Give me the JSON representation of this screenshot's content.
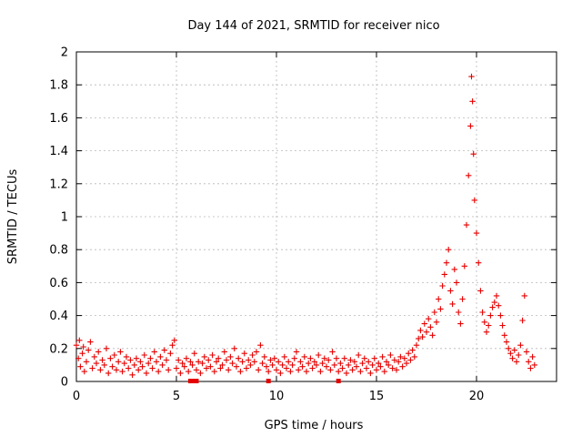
{
  "chart_data": {
    "type": "scatter",
    "title": "Day 144 of 2021, SRMTID for receiver nico",
    "xlabel": "GPS time / hours",
    "ylabel": "SRMTID / TECUs",
    "xlim": [
      0,
      24
    ],
    "ylim": [
      0,
      2
    ],
    "x_ticks": [
      0,
      5,
      10,
      15,
      20
    ],
    "x_tick_labels": [
      "0",
      "5",
      "10",
      "15",
      "20"
    ],
    "y_ticks": [
      0,
      0.2,
      0.4,
      0.6,
      0.8,
      1,
      1.2,
      1.4,
      1.6,
      1.8,
      2
    ],
    "y_tick_labels": [
      "0",
      "0.2",
      "0.4",
      "0.6",
      "0.8",
      "1",
      "1.2",
      "1.4",
      "1.6",
      "1.8",
      "2"
    ],
    "grid": true,
    "marker": "+",
    "series": [
      {
        "name": "SRMTID",
        "color": "#e60000",
        "points": [
          [
            0.0,
            0.22
          ],
          [
            0.1,
            0.14
          ],
          [
            0.15,
            0.25
          ],
          [
            0.2,
            0.09
          ],
          [
            0.3,
            0.17
          ],
          [
            0.35,
            0.21
          ],
          [
            0.4,
            0.06
          ],
          [
            0.5,
            0.12
          ],
          [
            0.6,
            0.19
          ],
          [
            0.7,
            0.24
          ],
          [
            0.8,
            0.08
          ],
          [
            0.9,
            0.15
          ],
          [
            1.0,
            0.11
          ],
          [
            1.1,
            0.18
          ],
          [
            1.2,
            0.07
          ],
          [
            1.3,
            0.13
          ],
          [
            1.4,
            0.1
          ],
          [
            1.5,
            0.2
          ],
          [
            1.6,
            0.05
          ],
          [
            1.7,
            0.14
          ],
          [
            1.8,
            0.09
          ],
          [
            1.9,
            0.16
          ],
          [
            2.0,
            0.07
          ],
          [
            2.1,
            0.12
          ],
          [
            2.2,
            0.18
          ],
          [
            2.3,
            0.06
          ],
          [
            2.4,
            0.11
          ],
          [
            2.5,
            0.15
          ],
          [
            2.6,
            0.08
          ],
          [
            2.7,
            0.13
          ],
          [
            2.8,
            0.04
          ],
          [
            2.9,
            0.1
          ],
          [
            3.0,
            0.14
          ],
          [
            3.1,
            0.07
          ],
          [
            3.2,
            0.12
          ],
          [
            3.3,
            0.09
          ],
          [
            3.4,
            0.16
          ],
          [
            3.5,
            0.05
          ],
          [
            3.6,
            0.11
          ],
          [
            3.7,
            0.14
          ],
          [
            3.8,
            0.08
          ],
          [
            3.9,
            0.18
          ],
          [
            4.0,
            0.12
          ],
          [
            4.1,
            0.06
          ],
          [
            4.2,
            0.15
          ],
          [
            4.3,
            0.1
          ],
          [
            4.4,
            0.19
          ],
          [
            4.5,
            0.13
          ],
          [
            4.6,
            0.07
          ],
          [
            4.7,
            0.17
          ],
          [
            4.8,
            0.22
          ],
          [
            4.9,
            0.25
          ],
          [
            5.0,
            0.08
          ],
          [
            5.1,
            0.13
          ],
          [
            5.2,
            0.05
          ],
          [
            5.3,
            0.11
          ],
          [
            5.4,
            0.09
          ],
          [
            5.5,
            0.14
          ],
          [
            5.6,
            0.06
          ],
          [
            5.7,
            0.12
          ],
          [
            5.8,
            0.1
          ],
          [
            5.9,
            0.17
          ],
          [
            6.0,
            0.07
          ],
          [
            6.1,
            0.12
          ],
          [
            6.2,
            0.05
          ],
          [
            6.3,
            0.11
          ],
          [
            6.4,
            0.15
          ],
          [
            6.5,
            0.08
          ],
          [
            6.6,
            0.13
          ],
          [
            6.7,
            0.09
          ],
          [
            6.8,
            0.16
          ],
          [
            6.9,
            0.06
          ],
          [
            7.0,
            0.12
          ],
          [
            7.1,
            0.14
          ],
          [
            7.2,
            0.08
          ],
          [
            7.3,
            0.1
          ],
          [
            7.4,
            0.18
          ],
          [
            7.5,
            0.13
          ],
          [
            7.6,
            0.07
          ],
          [
            7.7,
            0.15
          ],
          [
            7.8,
            0.11
          ],
          [
            7.9,
            0.2
          ],
          [
            8.0,
            0.09
          ],
          [
            8.1,
            0.14
          ],
          [
            8.2,
            0.06
          ],
          [
            8.3,
            0.12
          ],
          [
            8.4,
            0.17
          ],
          [
            8.5,
            0.08
          ],
          [
            8.6,
            0.13
          ],
          [
            8.7,
            0.1
          ],
          [
            8.8,
            0.16
          ],
          [
            8.9,
            0.12
          ],
          [
            9.0,
            0.18
          ],
          [
            9.1,
            0.07
          ],
          [
            9.2,
            0.22
          ],
          [
            9.3,
            0.11
          ],
          [
            9.4,
            0.15
          ],
          [
            9.5,
            0.09
          ],
          [
            9.6,
            0.06
          ],
          [
            9.7,
            0.13
          ],
          [
            9.8,
            0.1
          ],
          [
            9.9,
            0.14
          ],
          [
            10.0,
            0.07
          ],
          [
            10.1,
            0.12
          ],
          [
            10.2,
            0.05
          ],
          [
            10.3,
            0.1
          ],
          [
            10.4,
            0.15
          ],
          [
            10.5,
            0.08
          ],
          [
            10.6,
            0.12
          ],
          [
            10.7,
            0.06
          ],
          [
            10.8,
            0.1
          ],
          [
            10.9,
            0.14
          ],
          [
            11.0,
            0.18
          ],
          [
            11.1,
            0.07
          ],
          [
            11.2,
            0.12
          ],
          [
            11.3,
            0.09
          ],
          [
            11.4,
            0.15
          ],
          [
            11.5,
            0.06
          ],
          [
            11.6,
            0.11
          ],
          [
            11.7,
            0.14
          ],
          [
            11.8,
            0.08
          ],
          [
            11.9,
            0.12
          ],
          [
            12.0,
            0.1
          ],
          [
            12.1,
            0.16
          ],
          [
            12.2,
            0.06
          ],
          [
            12.3,
            0.11
          ],
          [
            12.4,
            0.14
          ],
          [
            12.5,
            0.09
          ],
          [
            12.6,
            0.13
          ],
          [
            12.7,
            0.07
          ],
          [
            12.8,
            0.18
          ],
          [
            12.9,
            0.1
          ],
          [
            13.0,
            0.14
          ],
          [
            13.1,
            0.06
          ],
          [
            13.2,
            0.11
          ],
          [
            13.3,
            0.08
          ],
          [
            13.4,
            0.14
          ],
          [
            13.5,
            0.05
          ],
          [
            13.6,
            0.1
          ],
          [
            13.7,
            0.13
          ],
          [
            13.8,
            0.07
          ],
          [
            13.9,
            0.12
          ],
          [
            14.0,
            0.09
          ],
          [
            14.1,
            0.16
          ],
          [
            14.2,
            0.06
          ],
          [
            14.3,
            0.11
          ],
          [
            14.4,
            0.14
          ],
          [
            14.5,
            0.08
          ],
          [
            14.6,
            0.12
          ],
          [
            14.7,
            0.05
          ],
          [
            14.8,
            0.1
          ],
          [
            14.9,
            0.14
          ],
          [
            15.0,
            0.07
          ],
          [
            15.1,
            0.11
          ],
          [
            15.2,
            0.09
          ],
          [
            15.3,
            0.15
          ],
          [
            15.4,
            0.06
          ],
          [
            15.5,
            0.12
          ],
          [
            15.6,
            0.1
          ],
          [
            15.7,
            0.16
          ],
          [
            15.8,
            0.08
          ],
          [
            15.9,
            0.13
          ],
          [
            16.0,
            0.07
          ],
          [
            16.1,
            0.12
          ],
          [
            16.2,
            0.15
          ],
          [
            16.3,
            0.09
          ],
          [
            16.4,
            0.14
          ],
          [
            16.5,
            0.11
          ],
          [
            16.6,
            0.17
          ],
          [
            16.7,
            0.13
          ],
          [
            16.8,
            0.19
          ],
          [
            16.9,
            0.15
          ],
          [
            17.0,
            0.22
          ],
          [
            17.1,
            0.26
          ],
          [
            17.2,
            0.31
          ],
          [
            17.3,
            0.27
          ],
          [
            17.4,
            0.35
          ],
          [
            17.5,
            0.3
          ],
          [
            17.6,
            0.38
          ],
          [
            17.7,
            0.33
          ],
          [
            17.8,
            0.28
          ],
          [
            17.9,
            0.42
          ],
          [
            18.0,
            0.36
          ],
          [
            18.1,
            0.5
          ],
          [
            18.2,
            0.44
          ],
          [
            18.3,
            0.58
          ],
          [
            18.4,
            0.65
          ],
          [
            18.5,
            0.72
          ],
          [
            18.6,
            0.8
          ],
          [
            18.7,
            0.55
          ],
          [
            18.8,
            0.47
          ],
          [
            18.9,
            0.68
          ],
          [
            19.0,
            0.6
          ],
          [
            19.1,
            0.42
          ],
          [
            19.2,
            0.35
          ],
          [
            19.3,
            0.5
          ],
          [
            19.4,
            0.7
          ],
          [
            19.5,
            0.95
          ],
          [
            19.6,
            1.25
          ],
          [
            19.7,
            1.55
          ],
          [
            19.75,
            1.85
          ],
          [
            19.8,
            1.7
          ],
          [
            19.85,
            1.38
          ],
          [
            19.9,
            1.1
          ],
          [
            20.0,
            0.9
          ],
          [
            20.1,
            0.72
          ],
          [
            20.2,
            0.55
          ],
          [
            20.3,
            0.42
          ],
          [
            20.4,
            0.36
          ],
          [
            20.5,
            0.3
          ],
          [
            20.6,
            0.34
          ],
          [
            20.7,
            0.4
          ],
          [
            20.8,
            0.45
          ],
          [
            20.9,
            0.48
          ],
          [
            21.0,
            0.52
          ],
          [
            21.1,
            0.46
          ],
          [
            21.2,
            0.4
          ],
          [
            21.3,
            0.34
          ],
          [
            21.4,
            0.28
          ],
          [
            21.5,
            0.24
          ],
          [
            21.6,
            0.2
          ],
          [
            21.7,
            0.17
          ],
          [
            21.8,
            0.14
          ],
          [
            21.9,
            0.19
          ],
          [
            22.0,
            0.12
          ],
          [
            22.1,
            0.16
          ],
          [
            22.2,
            0.22
          ],
          [
            22.3,
            0.37
          ],
          [
            22.4,
            0.52
          ],
          [
            22.5,
            0.18
          ],
          [
            22.6,
            0.12
          ],
          [
            22.7,
            0.08
          ],
          [
            22.8,
            0.15
          ],
          [
            22.9,
            0.1
          ]
        ]
      }
    ],
    "near_zero_markers": [
      5.7,
      5.9,
      6.0,
      9.6,
      13.1
    ]
  }
}
